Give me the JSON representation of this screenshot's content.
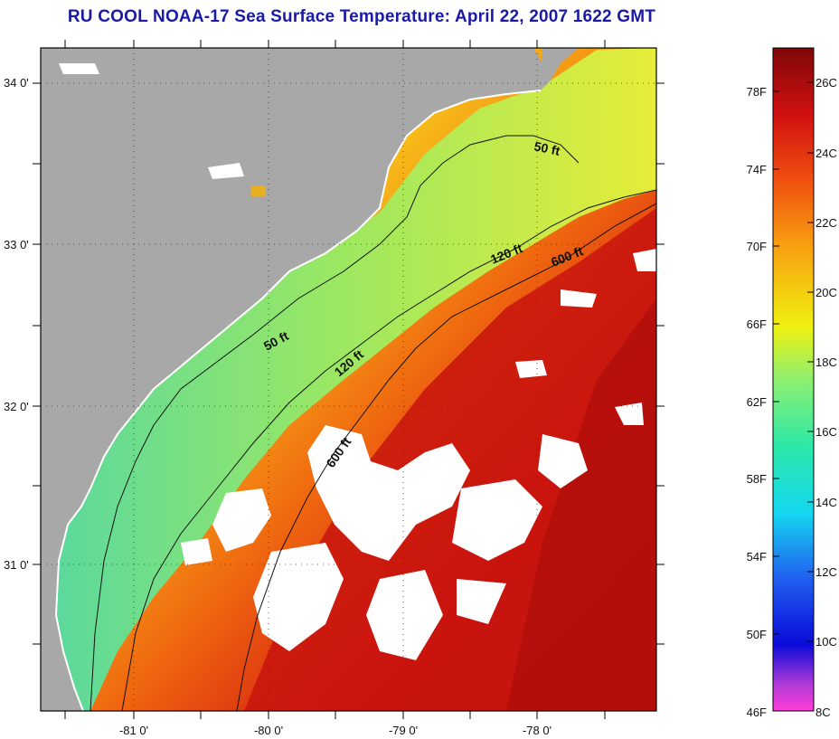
{
  "title": "RU COOL  NOAA-17  Sea Surface Temperature:  April 22, 2007 1622 GMT",
  "map": {
    "lat_labels": [
      "34 0'",
      "33 0'",
      "32 0'",
      "31 0'"
    ],
    "lon_labels": [
      "-81 0'",
      "-80 0'",
      "-79 0'",
      "-78 0'"
    ],
    "contour_labels": [
      "50 ft",
      "120 ft",
      "600 ft",
      "50 ft",
      "120 ft",
      "600 ft"
    ],
    "colors": {
      "land": "#a8a8a8",
      "cloud": "#ffffff",
      "warm": "#d41a10",
      "cool": "#9ee860"
    }
  },
  "colorbar": {
    "fahrenheit": [
      "78F",
      "74F",
      "70F",
      "66F",
      "62F",
      "58F",
      "54F",
      "50F",
      "46F"
    ],
    "celsius": [
      "26C",
      "24C",
      "22C",
      "20C",
      "18C",
      "16C",
      "14C",
      "12C",
      "10C",
      "8C"
    ],
    "range_c": [
      8,
      27
    ]
  }
}
